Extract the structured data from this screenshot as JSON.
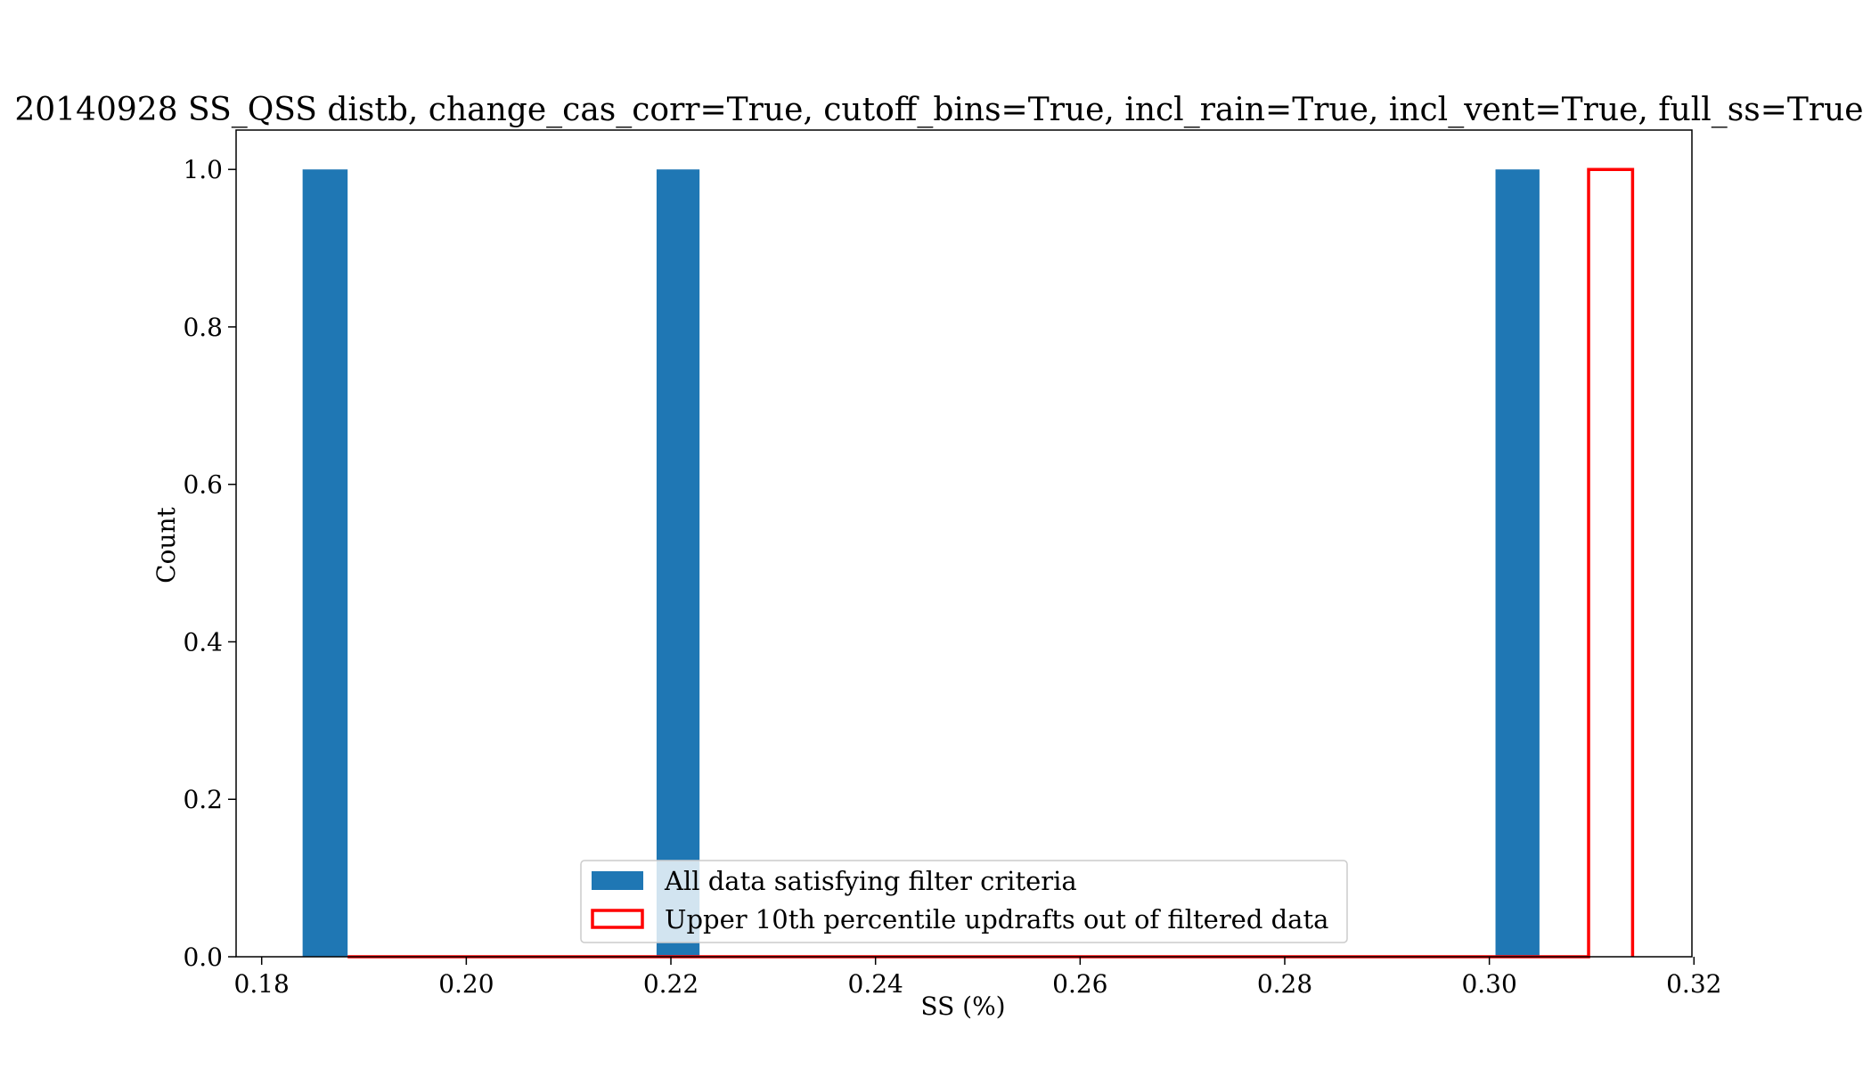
{
  "chart_data": {
    "type": "bar",
    "title": "20140928 SS_QSS distb, change_cas_corr=True, cutoff_bins=True, incl_rain=True, incl_vent=True, full_ss=True",
    "xlabel": "SS (%)",
    "ylabel": "Count",
    "xlim": [
      0.1775,
      0.3198
    ],
    "ylim": [
      0.0,
      1.05
    ],
    "x_ticks": [
      {
        "value": 0.18,
        "label": "0.18"
      },
      {
        "value": 0.2,
        "label": "0.20"
      },
      {
        "value": 0.22,
        "label": "0.22"
      },
      {
        "value": 0.24,
        "label": "0.24"
      },
      {
        "value": 0.26,
        "label": "0.26"
      },
      {
        "value": 0.28,
        "label": "0.28"
      },
      {
        "value": 0.3,
        "label": "0.30"
      },
      {
        "value": 0.32,
        "label": "0.32"
      }
    ],
    "y_ticks": [
      {
        "value": 0.0,
        "label": "0.0"
      },
      {
        "value": 0.2,
        "label": "0.2"
      },
      {
        "value": 0.4,
        "label": "0.4"
      },
      {
        "value": 0.6,
        "label": "0.6"
      },
      {
        "value": 0.8,
        "label": "0.8"
      },
      {
        "value": 1.0,
        "label": "1.0"
      }
    ],
    "grid": false,
    "legend_position": "bottom-center",
    "series": [
      {
        "name": "All data satisfying filter criteria",
        "style": "filled",
        "color": "#1f77b4",
        "bins": [
          {
            "x0": 0.184,
            "x1": 0.1884,
            "count": 1
          },
          {
            "x0": 0.2186,
            "x1": 0.2228,
            "count": 1
          },
          {
            "x0": 0.3006,
            "x1": 0.3049,
            "count": 1
          }
        ]
      },
      {
        "name": "Upper 10th percentile updrafts out of filtered data",
        "style": "outline",
        "color": "#ff0000",
        "range": [
          0.1884,
          0.314
        ],
        "bins": [
          {
            "x0": 0.3097,
            "x1": 0.314,
            "count": 1
          }
        ]
      }
    ]
  }
}
